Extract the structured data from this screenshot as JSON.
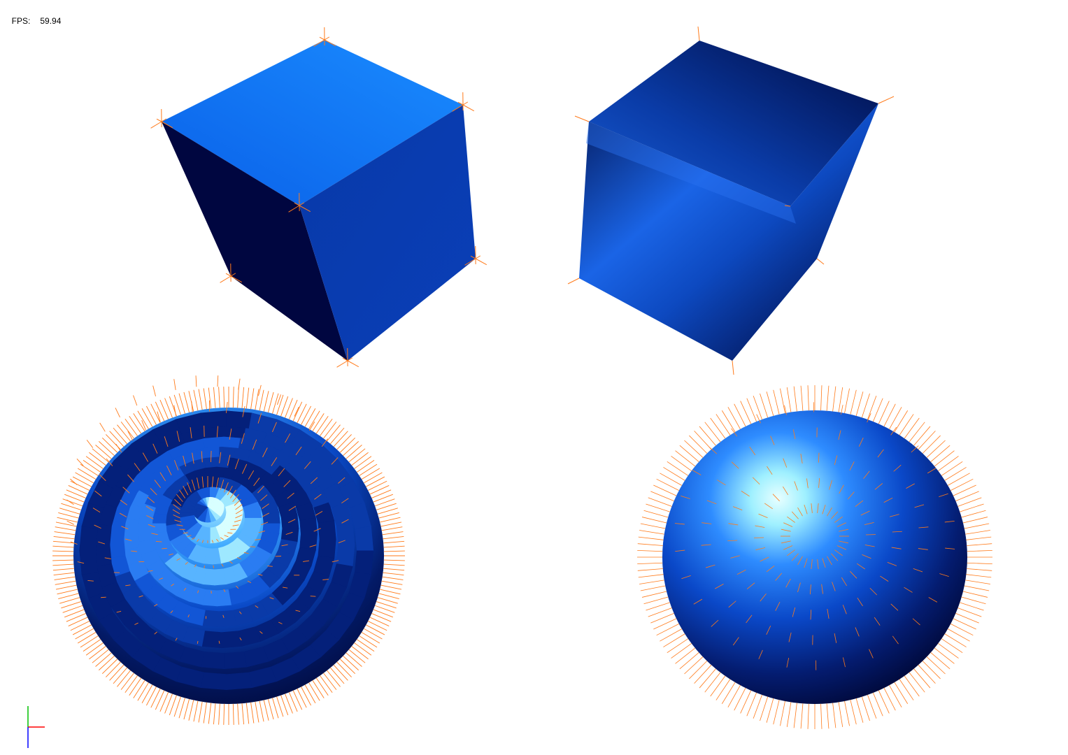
{
  "hud": {
    "fps_label": "FPS:",
    "fps_value": "59.94"
  },
  "scene": {
    "background": "#ffffff",
    "normal_color": "#ff7a1a",
    "shade_dark": "#000838",
    "shade_mid": "#0a3fb0",
    "shade_bright": "#1f8bff",
    "highlight": "#e8ffff",
    "objects": [
      {
        "name": "flat-shaded-cube",
        "shape": "cube",
        "shading": "flat",
        "normals": "per-vertex"
      },
      {
        "name": "smooth-shaded-cube",
        "shape": "cube",
        "shading": "smooth",
        "normals": "per-vertex"
      },
      {
        "name": "flat-shaded-sphere",
        "shape": "sphere",
        "shading": "flat",
        "normals": "per-face"
      },
      {
        "name": "smooth-shaded-sphere",
        "shape": "sphere",
        "shading": "smooth",
        "normals": "per-vertex"
      }
    ]
  },
  "axes_gizmo": {
    "x_color": "#ff0000",
    "y_color": "#00c000",
    "z_color": "#0000ff"
  }
}
